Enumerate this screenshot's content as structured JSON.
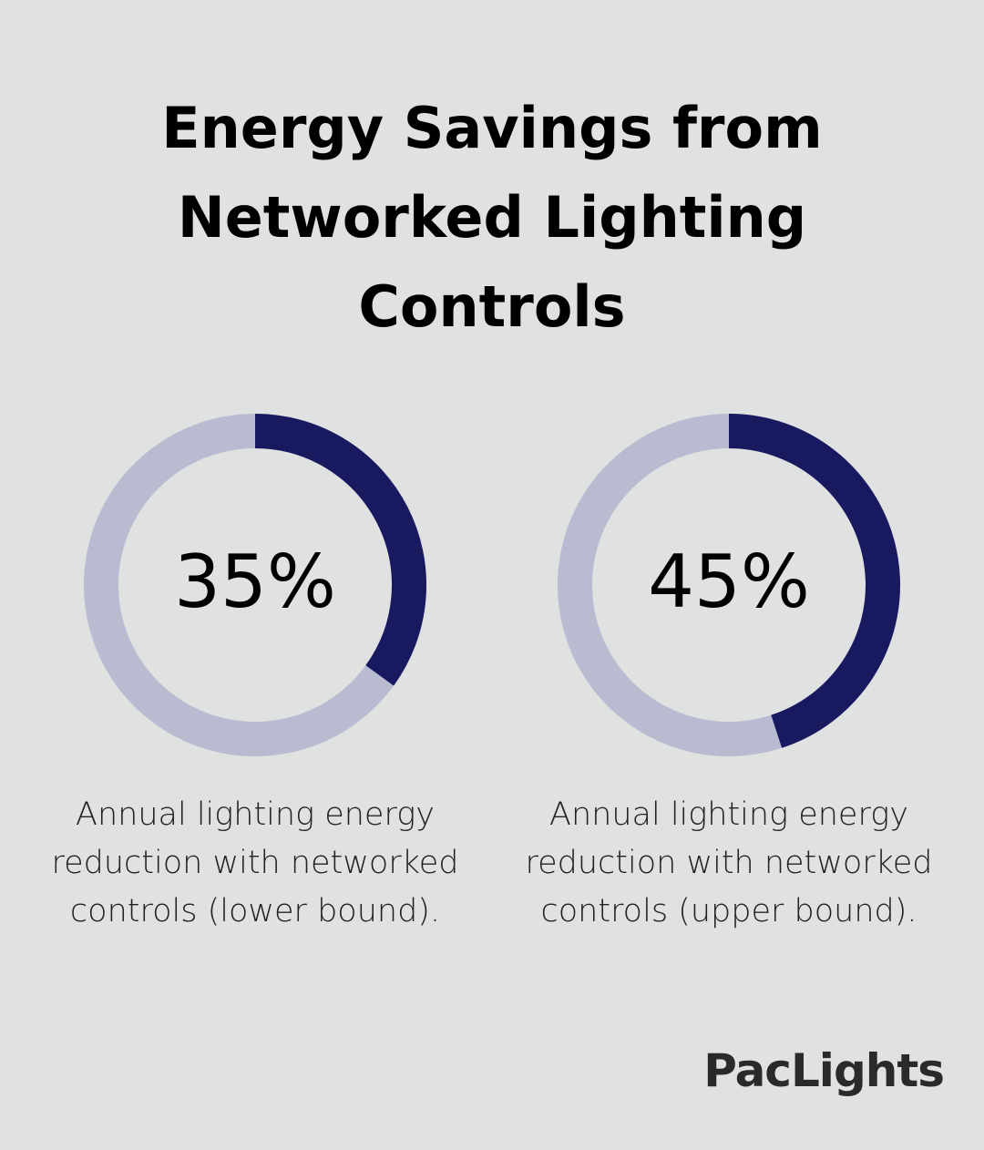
{
  "title": "Energy Savings from Networked Lighting Controls",
  "brand": "PacLights",
  "chart_data": [
    {
      "type": "donut",
      "values": [
        35
      ],
      "value_labels": [
        "35%"
      ],
      "ylim": [
        0,
        100
      ],
      "caption": "Annual lighting energy reduction with networked controls (lower bound).",
      "color": "#191960",
      "track_color": "#b9bbd1"
    },
    {
      "type": "donut",
      "values": [
        45
      ],
      "value_labels": [
        "45%"
      ],
      "ylim": [
        0,
        100
      ],
      "caption": "Annual lighting energy reduction with networked controls (upper bound).",
      "color": "#191960",
      "track_color": "#b9bbd1"
    }
  ]
}
